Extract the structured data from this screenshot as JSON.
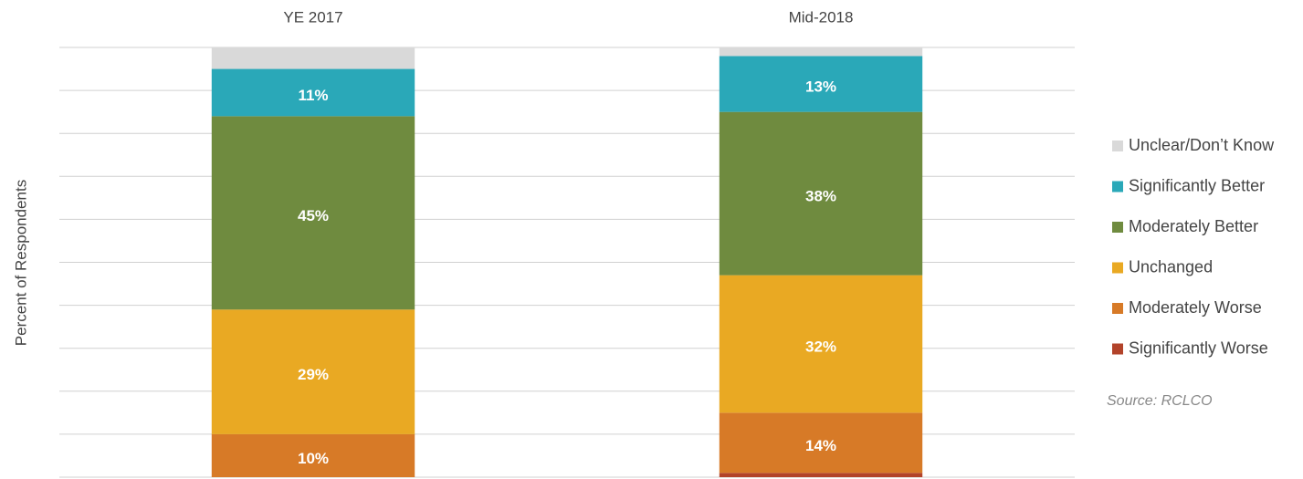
{
  "chart_data": {
    "type": "stacked_bar",
    "categories": [
      "YE 2017",
      "Mid-2018"
    ],
    "y_label": "Percent of Respondents",
    "source": "Source: RCLCO",
    "ylim": [
      0,
      100
    ],
    "yticks": [
      0,
      10,
      20,
      30,
      40,
      50,
      60,
      70,
      80,
      90,
      100
    ],
    "grid": true,
    "legend": "right",
    "series": [
      {
        "name": "Significantly Worse",
        "color": "#b2432a",
        "values": [
          0,
          1
        ]
      },
      {
        "name": "Moderately Worse",
        "color": "#d77a27",
        "values": [
          10,
          14
        ],
        "value_labels": [
          "10%",
          "14%"
        ]
      },
      {
        "name": "Unchanged",
        "color": "#e9a923",
        "values": [
          29,
          32
        ],
        "value_labels": [
          "29%",
          "32%"
        ]
      },
      {
        "name": "Moderately Better",
        "color": "#6f8b3f",
        "values": [
          45,
          38
        ],
        "value_labels": [
          "45%",
          "38%"
        ]
      },
      {
        "name": "Significantly Better",
        "color": "#2aa8b8",
        "values": [
          11,
          13
        ],
        "value_labels": [
          "11%",
          "13%"
        ]
      },
      {
        "name": "Unclear/Don’t Know",
        "color": "#d9d9d9",
        "values": [
          5,
          2
        ]
      }
    ]
  }
}
